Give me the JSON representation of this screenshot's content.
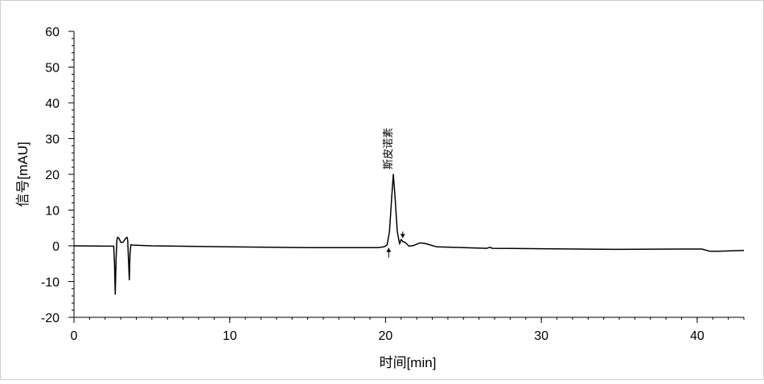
{
  "chart_data": {
    "type": "line",
    "xlabel": "时间[min]",
    "ylabel": "信号[mAU]",
    "xlim": [
      0,
      43
    ],
    "ylim": [
      -20,
      60
    ],
    "x_ticks": [
      "0",
      "10",
      "20",
      "30",
      "40"
    ],
    "y_ticks": [
      "-20",
      "-10",
      "0",
      "10",
      "20",
      "30",
      "40",
      "50",
      "60"
    ],
    "x_minor_step": 1,
    "y_minor_step": 2,
    "grid": false,
    "series": [
      {
        "color": "#000000",
        "points": [
          [
            0,
            0
          ],
          [
            2,
            -0.1
          ],
          [
            2.55,
            -0.1
          ],
          [
            2.6,
            -5
          ],
          [
            2.65,
            -13.5
          ],
          [
            2.7,
            -4
          ],
          [
            2.75,
            1.5
          ],
          [
            2.8,
            2.4
          ],
          [
            2.9,
            2.0
          ],
          [
            3.0,
            1.0
          ],
          [
            3.15,
            1.0
          ],
          [
            3.3,
            2.0
          ],
          [
            3.4,
            2.4
          ],
          [
            3.45,
            1.5
          ],
          [
            3.5,
            -4
          ],
          [
            3.55,
            -9.5
          ],
          [
            3.6,
            -2
          ],
          [
            3.65,
            0.3
          ],
          [
            3.8,
            0.2
          ],
          [
            5,
            0
          ],
          [
            10,
            -0.3
          ],
          [
            15,
            -0.5
          ],
          [
            19.5,
            -0.5
          ],
          [
            19.9,
            -0.3
          ],
          [
            20.1,
            0.3
          ],
          [
            20.25,
            4
          ],
          [
            20.4,
            14
          ],
          [
            20.5,
            20
          ],
          [
            20.6,
            14
          ],
          [
            20.75,
            4
          ],
          [
            20.9,
            0.5
          ],
          [
            21.0,
            1.8
          ],
          [
            21.1,
            1.2
          ],
          [
            21.25,
            1.0
          ],
          [
            21.5,
            -0.1
          ],
          [
            21.8,
            0.1
          ],
          [
            22.2,
            0.8
          ],
          [
            22.5,
            0.7
          ],
          [
            22.9,
            0.2
          ],
          [
            23.3,
            -0.3
          ],
          [
            26.5,
            -0.7
          ],
          [
            26.7,
            -0.4
          ],
          [
            26.85,
            -0.7
          ],
          [
            30,
            -0.8
          ],
          [
            35,
            -1.0
          ],
          [
            39,
            -0.9
          ],
          [
            40.3,
            -0.9
          ],
          [
            40.8,
            -1.5
          ],
          [
            41.3,
            -1.5
          ],
          [
            43,
            -1.3
          ]
        ]
      }
    ],
    "peaks": [
      {
        "label": "斯皮诺素",
        "x": 20.5,
        "y": 20
      }
    ],
    "integration_markers": [
      {
        "x": 20.2,
        "y": -0.6,
        "direction": "up"
      },
      {
        "x": 21.1,
        "y": 2.2,
        "direction": "down"
      }
    ]
  }
}
